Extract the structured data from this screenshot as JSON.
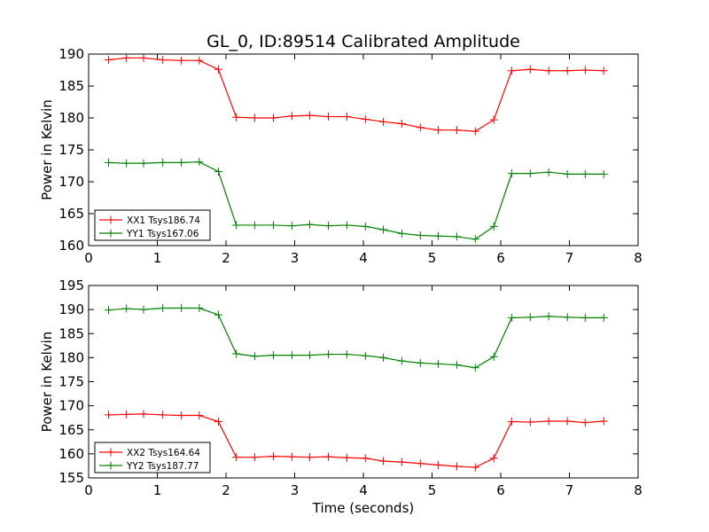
{
  "figure": {
    "title": "GL_0, ID:89514 Calibrated Amplitude",
    "xlabel": "Time (seconds)"
  },
  "chart_data": [
    {
      "type": "line",
      "ylabel": "Power in Kelvin",
      "xlim": [
        0,
        8
      ],
      "ylim": [
        160,
        190
      ],
      "xticks": [
        0,
        1,
        2,
        3,
        4,
        5,
        6,
        7,
        8
      ],
      "yticks": [
        160,
        165,
        170,
        175,
        180,
        185,
        190
      ],
      "grid": false,
      "legend_position": "lower-left",
      "x": [
        0.29,
        0.55,
        0.8,
        1.08,
        1.35,
        1.61,
        1.89,
        2.15,
        2.42,
        2.69,
        2.96,
        3.22,
        3.49,
        3.76,
        4.03,
        4.29,
        4.56,
        4.83,
        5.09,
        5.36,
        5.63,
        5.9,
        6.16,
        6.43,
        6.7,
        6.97,
        7.23,
        7.5
      ],
      "series": [
        {
          "name": "XX1 Tsys186.74",
          "color": "#ff0000",
          "values": [
            189.1,
            189.4,
            189.4,
            189.1,
            189.0,
            189.0,
            187.6,
            180.1,
            180.0,
            180.0,
            180.3,
            180.4,
            180.2,
            180.2,
            179.8,
            179.4,
            179.1,
            178.5,
            178.1,
            178.1,
            177.9,
            179.7,
            187.4,
            187.6,
            187.4,
            187.4,
            187.5,
            187.4
          ]
        },
        {
          "name": "YY1 Tsys167.06",
          "color": "#008000",
          "values": [
            173.0,
            172.9,
            172.9,
            173.0,
            173.0,
            173.1,
            171.6,
            163.2,
            163.2,
            163.2,
            163.1,
            163.3,
            163.1,
            163.2,
            163.0,
            162.5,
            161.9,
            161.6,
            161.5,
            161.4,
            161.0,
            163.0,
            171.3,
            171.3,
            171.5,
            171.2,
            171.2,
            171.2
          ]
        }
      ]
    },
    {
      "type": "line",
      "ylabel": "Power in Kelvin",
      "xlim": [
        0,
        8
      ],
      "ylim": [
        155,
        195
      ],
      "xticks": [
        0,
        1,
        2,
        3,
        4,
        5,
        6,
        7,
        8
      ],
      "yticks": [
        155,
        160,
        165,
        170,
        175,
        180,
        185,
        190,
        195
      ],
      "grid": false,
      "legend_position": "lower-left",
      "x": [
        0.29,
        0.55,
        0.8,
        1.08,
        1.35,
        1.61,
        1.89,
        2.15,
        2.42,
        2.69,
        2.96,
        3.22,
        3.49,
        3.76,
        4.03,
        4.29,
        4.56,
        4.83,
        5.09,
        5.36,
        5.63,
        5.9,
        6.16,
        6.43,
        6.7,
        6.97,
        7.23,
        7.5
      ],
      "series": [
        {
          "name": "XX2 Tsys164.64",
          "color": "#ff0000",
          "values": [
            168.1,
            168.2,
            168.3,
            168.1,
            168.0,
            168.0,
            166.7,
            159.3,
            159.3,
            159.5,
            159.4,
            159.3,
            159.4,
            159.2,
            159.1,
            158.5,
            158.3,
            158.0,
            157.7,
            157.4,
            157.2,
            159.1,
            166.7,
            166.6,
            166.8,
            166.8,
            166.5,
            166.8
          ]
        },
        {
          "name": "YY2 Tsys187.77",
          "color": "#008000",
          "values": [
            189.9,
            190.2,
            190.0,
            190.3,
            190.3,
            190.3,
            188.9,
            180.8,
            180.3,
            180.5,
            180.5,
            180.5,
            180.7,
            180.7,
            180.4,
            180.0,
            179.3,
            178.9,
            178.7,
            178.5,
            177.9,
            180.2,
            188.3,
            188.4,
            188.6,
            188.4,
            188.3,
            188.3
          ]
        }
      ]
    }
  ]
}
